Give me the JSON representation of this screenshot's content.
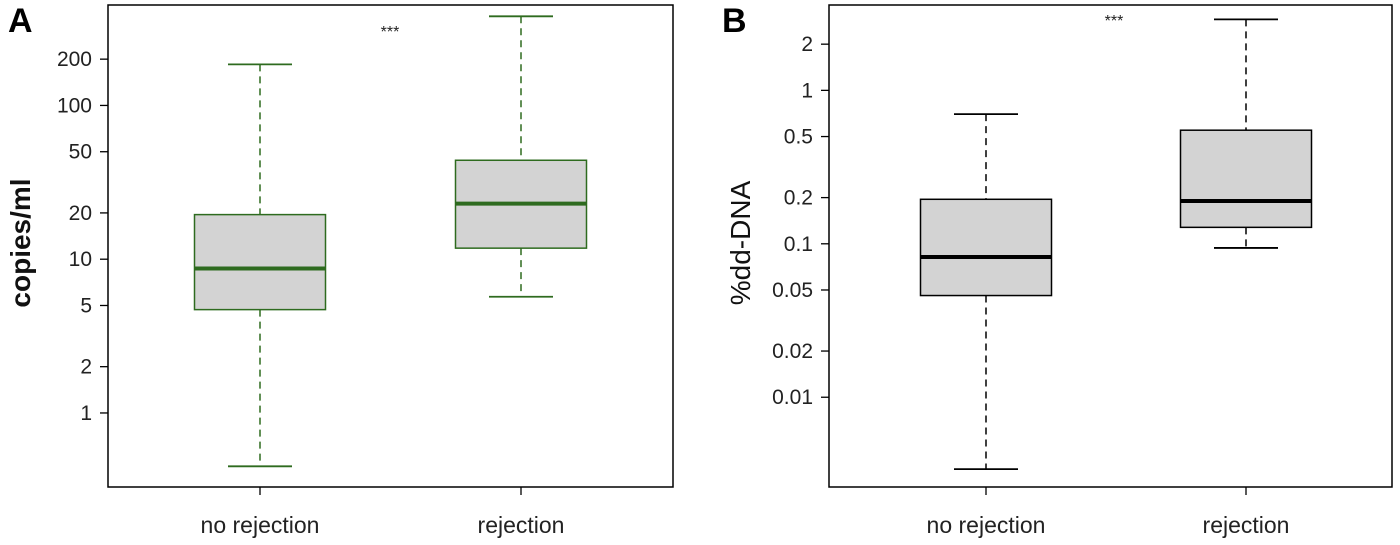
{
  "chart_data": [
    {
      "panel": "A",
      "type": "box",
      "ylabel": "copies/ml",
      "yscale": "log",
      "ylim": [
        0.33,
        450
      ],
      "yticks": [
        1,
        2,
        5,
        10,
        20,
        50,
        100,
        200
      ],
      "ytick_labels": [
        "1",
        "2",
        "5",
        "10",
        "20",
        "50",
        "100",
        "200"
      ],
      "categories": [
        "no rejection",
        "rejection"
      ],
      "boxes": [
        {
          "whisker_low": 0.45,
          "q1": 4.7,
          "median": 8.7,
          "q3": 19.5,
          "whisker_high": 185
        },
        {
          "whisker_low": 5.7,
          "q1": 11.8,
          "median": 23,
          "q3": 44,
          "whisker_high": 380
        }
      ],
      "annotation": "***",
      "color": "#2e6b1f",
      "box_fill": "#d3d3d3"
    },
    {
      "panel": "B",
      "type": "box",
      "ylabel": "%dd-DNA",
      "yscale": "log",
      "ylim": [
        0.0026,
        3.6
      ],
      "yticks": [
        0.01,
        0.02,
        0.05,
        0.1,
        0.2,
        0.5,
        1,
        2
      ],
      "ytick_labels": [
        "0.01",
        "0.02",
        "0.05",
        "0.1",
        "0.2",
        "0.5",
        "1",
        "2"
      ],
      "categories": [
        "no rejection",
        "rejection"
      ],
      "boxes": [
        {
          "whisker_low": 0.0034,
          "q1": 0.046,
          "median": 0.082,
          "q3": 0.195,
          "whisker_high": 0.7
        },
        {
          "whisker_low": 0.094,
          "q1": 0.128,
          "median": 0.19,
          "q3": 0.55,
          "whisker_high": 2.9
        }
      ],
      "annotation": "***",
      "color": "#000000",
      "box_fill": "#d3d3d3"
    }
  ]
}
